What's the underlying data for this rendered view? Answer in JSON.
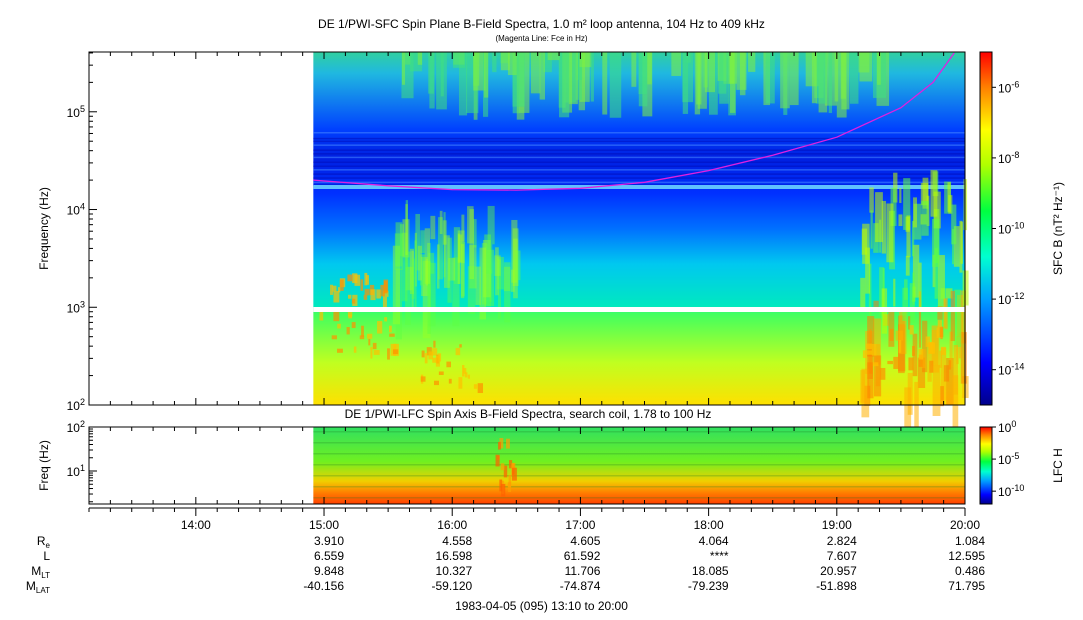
{
  "chart_data": [
    {
      "type": "heatmap",
      "title": "DE 1/PWI-SFC  Spin Plane B-Field Spectra, 1.0 m² loop antenna, 104 Hz to 409 kHz",
      "subtitle": "(Magenta Line: Fce in Hz)",
      "ylabel": "Frequency (Hz)",
      "yscale": "log",
      "ylim": [
        100,
        409000
      ],
      "y_ticks": [
        {
          "base": "10",
          "exp": "2"
        },
        {
          "base": "10",
          "exp": "3"
        },
        {
          "base": "10",
          "exp": "4"
        },
        {
          "base": "10",
          "exp": "5"
        }
      ],
      "colorbar_label": "SFC B (nT² Hz⁻¹)",
      "colorbar_scale": "log",
      "colorbar_range": [
        1e-15,
        1e-05
      ],
      "colorbar_ticks": [
        {
          "base": "10",
          "exp": "-6"
        },
        {
          "base": "10",
          "exp": "-8"
        },
        {
          "base": "10",
          "exp": "-10"
        },
        {
          "base": "10",
          "exp": "-12"
        },
        {
          "base": "10",
          "exp": "-14"
        }
      ],
      "data_start": "14:55",
      "fce_line": {
        "color": "#e020e0",
        "times": [
          "14:55",
          "15:30",
          "16:00",
          "16:30",
          "17:00",
          "17:30",
          "18:00",
          "18:30",
          "19:00",
          "19:30",
          "19:45",
          "19:55"
        ],
        "values_hz": [
          20000,
          17500,
          16000,
          15800,
          16500,
          19000,
          25000,
          36000,
          55000,
          110000,
          200000,
          400000
        ]
      }
    },
    {
      "type": "heatmap",
      "title": "DE 1/PWI-LFC  Spin Axis B-Field Spectra, search coil, 1.78 to 100 Hz",
      "ylabel": "Freq (Hz)",
      "yscale": "log",
      "ylim": [
        1.78,
        100
      ],
      "y_ticks": [
        {
          "base": "10",
          "exp": "1"
        },
        {
          "base": "10",
          "exp": "2"
        }
      ],
      "colorbar_label": "LFC H",
      "colorbar_scale": "log",
      "colorbar_range": [
        1e-12,
        1
      ],
      "colorbar_ticks": [
        {
          "base": "10",
          "exp": "0"
        },
        {
          "base": "10",
          "exp": "-5"
        },
        {
          "base": "10",
          "exp": "-10"
        }
      ],
      "data_start": "14:55"
    }
  ],
  "time_axis": {
    "ticks": [
      "14:00",
      "15:00",
      "16:00",
      "17:00",
      "18:00",
      "19:00",
      "20:00"
    ],
    "range": [
      "13:10",
      "20:00"
    ]
  },
  "ephemeris": {
    "rows": [
      {
        "label": "R",
        "sub": "e",
        "values": [
          "3.910",
          "4.558",
          "4.605",
          "4.064",
          "2.824",
          "1.084"
        ]
      },
      {
        "label": "L",
        "sub": "",
        "values": [
          "6.559",
          "16.598",
          "61.592",
          "****",
          "7.607",
          "12.595"
        ]
      },
      {
        "label": "M",
        "sub": "LT",
        "values": [
          "9.848",
          "10.327",
          "11.706",
          "18.085",
          "20.957",
          "0.486"
        ]
      },
      {
        "label": "M",
        "sub": "LAT",
        "values": [
          "-40.156",
          "-59.120",
          "-74.874",
          "-79.239",
          "-51.898",
          "71.795"
        ]
      }
    ],
    "times": [
      "15:00",
      "16:00",
      "17:00",
      "18:00",
      "19:00",
      "20:00"
    ]
  },
  "footer": "1983-04-05 (095) 13:10 to 20:00"
}
